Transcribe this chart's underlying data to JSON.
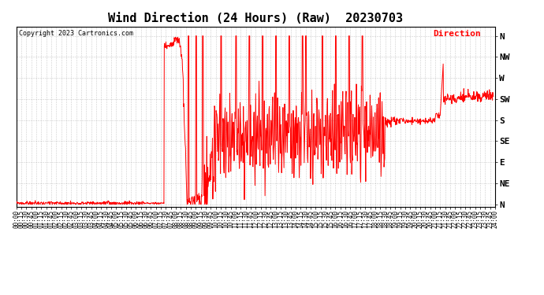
{
  "title": "Wind Direction (24 Hours) (Raw)  20230703",
  "copyright_text": "Copyright 2023 Cartronics.com",
  "legend_label": "Direction",
  "legend_color": "#ff0000",
  "background_color": "#ffffff",
  "plot_bg_color": "#ffffff",
  "line_color": "#ff0000",
  "grid_color": "#aaaaaa",
  "title_fontsize": 11,
  "copyright_fontsize": 6,
  "legend_fontsize": 8,
  "tick_fontsize": 5.5,
  "ytick_fontsize": 8,
  "ylabel_ticks": [
    360,
    315,
    270,
    225,
    180,
    135,
    90,
    45,
    0
  ],
  "ylabel_labels": [
    "N",
    "NW",
    "W",
    "SW",
    "S",
    "SE",
    "E",
    "NE",
    "N"
  ],
  "ylim": [
    -5,
    380
  ],
  "total_minutes": 1440,
  "figsize": [
    6.9,
    3.75
  ],
  "dpi": 100
}
